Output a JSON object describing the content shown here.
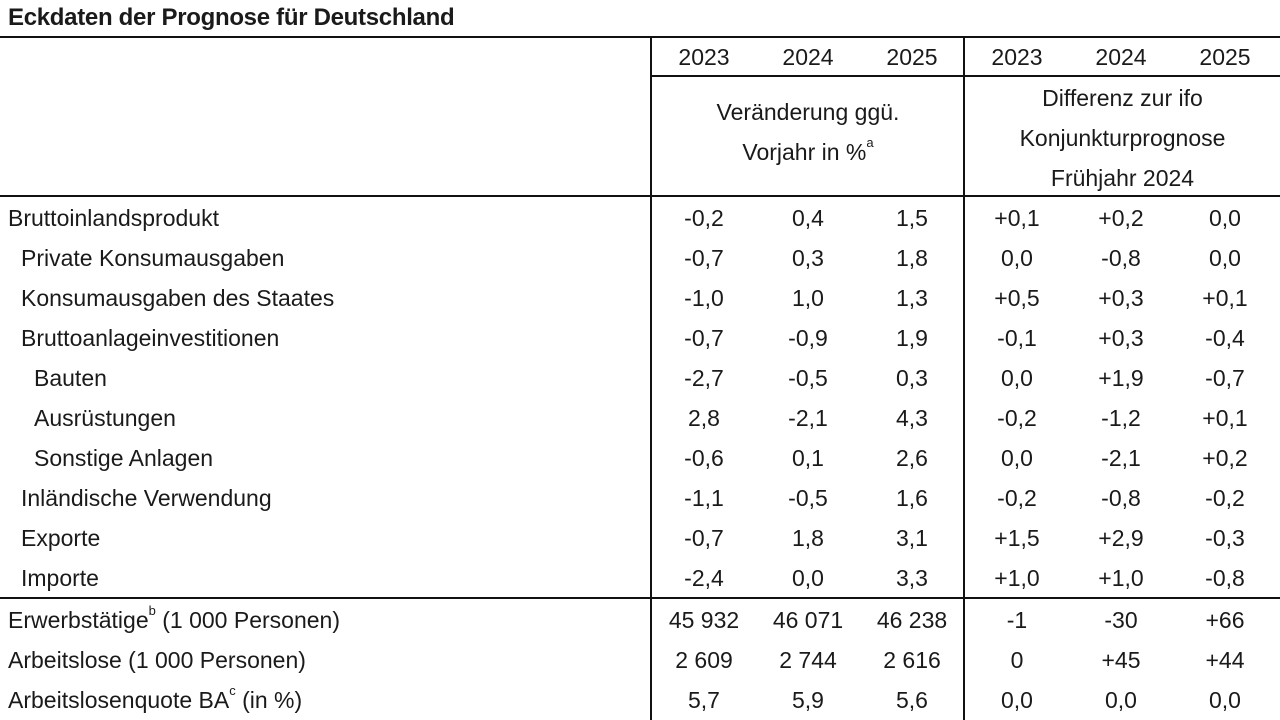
{
  "title": "Eckdaten der Prognose für Deutschland",
  "years_left": [
    "2023",
    "2024",
    "2025"
  ],
  "years_right": [
    "2023",
    "2024",
    "2025"
  ],
  "subhead_left": {
    "line1": "Veränderung ggü.",
    "line2": "Vorjahr in %",
    "sup": "a"
  },
  "subhead_right": {
    "line1": "Differenz zur ifo",
    "line2": "Konjunkturprognose",
    "line3": "Frühjahr 2024"
  },
  "rows": [
    {
      "label": "Bruttoinlandsprodukt",
      "indent": 0,
      "values": [
        "-0,2",
        "0,4",
        "1,5",
        "+0,1",
        "+0,2",
        "0,0"
      ]
    },
    {
      "label": "Private Konsumausgaben",
      "indent": 1,
      "values": [
        "-0,7",
        "0,3",
        "1,8",
        "0,0",
        "-0,8",
        "0,0"
      ]
    },
    {
      "label": "Konsumausgaben des Staates",
      "indent": 1,
      "values": [
        "-1,0",
        "1,0",
        "1,3",
        "+0,5",
        "+0,3",
        "+0,1"
      ]
    },
    {
      "label": "Bruttoanlageinvestitionen",
      "indent": 1,
      "values": [
        "-0,7",
        "-0,9",
        "1,9",
        "-0,1",
        "+0,3",
        "-0,4"
      ]
    },
    {
      "label": "Bauten",
      "indent": 2,
      "values": [
        "-2,7",
        "-0,5",
        "0,3",
        "0,0",
        "+1,9",
        "-0,7"
      ]
    },
    {
      "label": "Ausrüstungen",
      "indent": 2,
      "values": [
        "2,8",
        "-2,1",
        "4,3",
        "-0,2",
        "-1,2",
        "+0,1"
      ]
    },
    {
      "label": "Sonstige Anlagen",
      "indent": 2,
      "values": [
        "-0,6",
        "0,1",
        "2,6",
        "0,0",
        "-2,1",
        "+0,2"
      ]
    },
    {
      "label": "Inländische Verwendung",
      "indent": 1,
      "values": [
        "-1,1",
        "-0,5",
        "1,6",
        "-0,2",
        "-0,8",
        "-0,2"
      ]
    },
    {
      "label": "Exporte",
      "indent": 1,
      "values": [
        "-0,7",
        "1,8",
        "3,1",
        "+1,5",
        "+2,9",
        "-0,3"
      ]
    },
    {
      "label": "Importe",
      "indent": 1,
      "values": [
        "-2,4",
        "0,0",
        "3,3",
        "+1,0",
        "+1,0",
        "-0,8"
      ]
    }
  ],
  "rows2": [
    {
      "label": "Erwerbstätige",
      "sup": "b",
      "suffix": " (1 000 Personen)",
      "values": [
        "45 932",
        "46 071",
        "46 238",
        "-1",
        "-30",
        "+66"
      ]
    },
    {
      "label": "Arbeitslose (1 000 Personen)",
      "sup": "",
      "suffix": "",
      "values": [
        "2 609",
        "2 744",
        "2 616",
        "0",
        "+45",
        "+44"
      ]
    },
    {
      "label": "Arbeitslosenquote BA",
      "sup": "c",
      "suffix": " (in %)",
      "values": [
        "5,7",
        "5,9",
        "5,6",
        "0,0",
        "0,0",
        "0,0"
      ]
    }
  ]
}
